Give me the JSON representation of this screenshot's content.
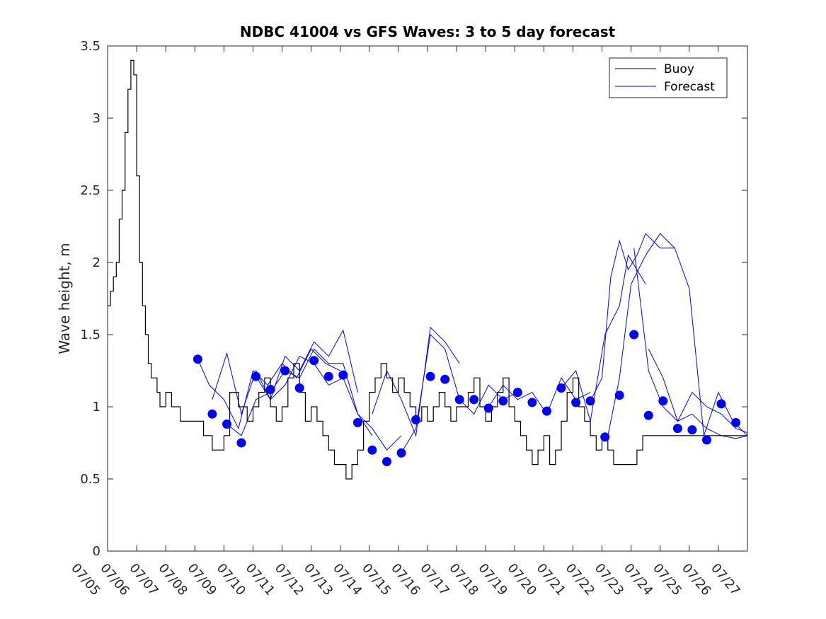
{
  "chart_data": {
    "type": "line",
    "title": "NDBC 41004 vs GFS Waves: 3 to 5 day forecast",
    "xlabel": "",
    "ylabel": "Wave height, m",
    "xlim": [
      0,
      22
    ],
    "ylim": [
      0,
      3.5
    ],
    "x_tick_labels": [
      "07/05",
      "07/06",
      "07/07",
      "07/08",
      "07/09",
      "07/10",
      "07/11",
      "07/12",
      "07/13",
      "07/14",
      "07/15",
      "07/16",
      "07/17",
      "07/18",
      "07/19",
      "07/20",
      "07/21",
      "07/22",
      "07/23",
      "07/24",
      "07/25",
      "07/26",
      "07/27"
    ],
    "y_tick_labels": [
      "0",
      "0.5",
      "1",
      "1.5",
      "2",
      "2.5",
      "3",
      "3.5"
    ],
    "y_ticks": [
      0,
      0.5,
      1,
      1.5,
      2,
      2.5,
      3,
      3.5
    ],
    "legend": {
      "position": "top-right",
      "entries": [
        "Buoy",
        "Forecast"
      ]
    },
    "colors": {
      "buoy": "#000000",
      "forecast": "#0000ff"
    },
    "series": [
      {
        "name": "Buoy",
        "x": [
          0,
          0.1,
          0.2,
          0.3,
          0.4,
          0.5,
          0.6,
          0.7,
          0.8,
          0.9,
          1.0,
          1.1,
          1.2,
          1.3,
          1.4,
          1.5,
          1.6,
          1.7,
          1.8,
          2.0,
          2.2,
          2.5,
          2.8,
          3.0,
          3.3,
          3.6,
          4.0,
          4.2,
          4.5,
          4.8,
          5.0,
          5.2,
          5.4,
          5.6,
          5.8,
          6.0,
          6.2,
          6.4,
          6.6,
          6.8,
          7.0,
          7.2,
          7.4,
          7.6,
          7.8,
          8.0,
          8.2,
          8.4,
          8.6,
          8.8,
          9.0,
          9.2,
          9.4,
          9.6,
          9.8,
          10.0,
          10.2,
          10.4,
          10.6,
          10.8,
          11.0,
          11.2,
          11.4,
          11.6,
          11.8,
          12.0,
          12.2,
          12.4,
          12.6,
          12.8,
          13.0,
          13.2,
          13.4,
          13.6,
          13.8,
          14.0,
          14.2,
          14.4,
          14.6,
          14.8,
          15.0,
          15.2,
          15.4,
          15.6,
          15.8,
          16.0,
          16.2,
          16.4,
          16.6,
          16.8,
          17.0,
          17.2,
          17.4,
          17.6,
          17.8,
          18.0,
          18.2,
          18.4,
          18.6,
          18.8,
          19.0,
          19.2,
          19.4,
          19.6,
          19.8,
          20.0,
          20.2,
          20.4,
          20.6,
          20.8,
          21.0,
          21.2,
          21.4,
          21.6,
          21.8,
          22.0
        ],
        "values": [
          1.7,
          1.8,
          1.9,
          2.0,
          2.3,
          2.5,
          2.9,
          3.2,
          3.4,
          3.3,
          2.6,
          2.0,
          1.7,
          1.5,
          1.3,
          1.2,
          1.2,
          1.1,
          1.0,
          1.1,
          1.0,
          0.9,
          0.9,
          0.9,
          0.8,
          0.7,
          0.8,
          1.1,
          1.0,
          0.9,
          1.0,
          1.1,
          1.2,
          1.0,
          0.9,
          1.0,
          1.2,
          1.3,
          1.1,
          0.9,
          1.0,
          0.9,
          0.8,
          0.7,
          0.6,
          0.6,
          0.5,
          0.6,
          0.7,
          0.9,
          1.1,
          1.2,
          1.3,
          1.2,
          1.1,
          1.2,
          1.1,
          1.0,
          0.9,
          1.0,
          0.9,
          1.0,
          1.1,
          1.0,
          0.9,
          1.0,
          1.0,
          1.1,
          1.2,
          1.0,
          0.9,
          1.0,
          1.1,
          1.2,
          1.0,
          0.9,
          0.8,
          0.7,
          0.6,
          0.7,
          0.8,
          0.6,
          0.7,
          0.9,
          1.1,
          1.2,
          1.0,
          0.9,
          0.8,
          0.7,
          0.8,
          0.7,
          0.6,
          0.6,
          0.6,
          0.6,
          0.7,
          0.8,
          0.8,
          0.8,
          0.8,
          0.8,
          0.8,
          0.8,
          0.8,
          0.8,
          0.8,
          0.8,
          0.8,
          0.8,
          0.8,
          0.8,
          0.8,
          0.8,
          0.8,
          0.8
        ]
      },
      {
        "name": "Forecast",
        "x": [
          3.1,
          3.6,
          4.1,
          4.6,
          5.1,
          5.6,
          6.1,
          6.6,
          7.1,
          7.6,
          8.1,
          8.6,
          9.1,
          9.6,
          10.1,
          10.6,
          11.1,
          11.6,
          12.1,
          12.6,
          13.1,
          13.6,
          14.1,
          14.6,
          15.1,
          15.6,
          16.1,
          16.6,
          17.1,
          17.6,
          18.1,
          18.6,
          19.1,
          19.6,
          20.1,
          20.6,
          21.1,
          21.6
        ],
        "values": [
          1.33,
          0.95,
          0.88,
          0.75,
          1.21,
          1.12,
          1.25,
          1.13,
          1.32,
          1.21,
          1.22,
          0.89,
          0.7,
          0.62,
          0.68,
          0.91,
          1.21,
          1.19,
          1.05,
          1.05,
          0.99,
          1.04,
          1.1,
          1.03,
          0.97,
          1.13,
          1.03,
          1.04,
          0.79,
          1.08,
          1.5,
          0.94,
          1.04,
          0.85,
          0.84,
          0.77,
          1.02,
          0.89
        ]
      }
    ],
    "forecast_runs": [
      {
        "x": [
          3.1,
          3.5,
          4.0,
          4.5,
          5.0,
          5.5,
          6.0,
          6.5,
          7.0,
          7.5,
          8.0
        ],
        "values": [
          1.33,
          1.15,
          1.05,
          0.85,
          1.25,
          1.15,
          1.3,
          1.2,
          1.4,
          1.3,
          1.25
        ]
      },
      {
        "x": [
          3.6,
          4.1,
          4.6,
          5.1,
          5.6,
          6.1,
          6.6,
          7.1,
          7.6,
          8.1,
          8.6
        ],
        "values": [
          1.05,
          1.37,
          0.95,
          1.25,
          1.05,
          1.35,
          1.25,
          1.45,
          1.35,
          1.53,
          1.1
        ]
      },
      {
        "x": [
          4.1,
          4.6,
          5.1,
          5.6,
          6.1,
          6.6,
          7.1,
          7.6,
          8.1,
          8.6,
          9.1
        ],
        "values": [
          0.88,
          0.8,
          1.05,
          1.1,
          1.25,
          1.2,
          1.4,
          1.3,
          1.3,
          0.95,
          0.8
        ]
      },
      {
        "x": [
          5.1,
          5.6,
          6.1,
          6.6,
          7.1,
          7.6,
          8.1,
          8.6,
          9.1,
          9.6,
          10.1
        ],
        "values": [
          1.21,
          1.05,
          1.15,
          1.35,
          1.3,
          1.15,
          1.2,
          0.95,
          0.85,
          0.7,
          0.8
        ]
      },
      {
        "x": [
          9.1,
          9.6,
          10.1,
          10.6,
          11.1,
          11.6,
          12.1
        ],
        "values": [
          0.95,
          1.25,
          1.05,
          0.8,
          1.55,
          1.45,
          1.3
        ]
      },
      {
        "x": [
          10.1,
          10.6,
          11.1,
          11.6,
          12.1,
          12.6,
          13.1,
          13.6,
          14.1
        ],
        "values": [
          0.68,
          0.85,
          1.5,
          1.4,
          1.05,
          0.95,
          1.15,
          1.05,
          1.1
        ]
      },
      {
        "x": [
          13.1,
          13.6,
          14.1,
          14.6,
          15.1,
          15.6,
          16.1,
          16.6
        ],
        "values": [
          1.0,
          1.15,
          1.05,
          1.1,
          0.95,
          1.2,
          1.05,
          1.1
        ]
      },
      {
        "x": [
          15.6,
          16.1,
          16.6,
          17.1,
          17.6,
          17.9,
          18.2,
          18.5
        ],
        "values": [
          1.13,
          1.25,
          0.9,
          1.5,
          1.7,
          2.05,
          1.95,
          1.85
        ]
      },
      {
        "x": [
          16.6,
          17.0,
          17.3,
          17.6,
          17.9,
          18.2,
          18.5,
          19.0,
          19.5
        ],
        "values": [
          1.04,
          1.2,
          1.9,
          2.15,
          1.95,
          2.05,
          2.2,
          2.1,
          2.1
        ]
      },
      {
        "x": [
          17.2,
          17.6,
          18.0,
          18.5,
          19.0,
          19.5,
          20.0,
          20.5,
          21.0,
          21.5,
          22.0
        ],
        "values": [
          0.8,
          1.2,
          1.85,
          2.05,
          2.2,
          2.1,
          1.82,
          0.8,
          1.1,
          0.9,
          0.8
        ]
      },
      {
        "x": [
          18.1,
          18.6,
          19.1,
          19.6,
          20.1,
          20.6,
          21.1,
          21.6,
          22.0
        ],
        "values": [
          2.1,
          1.25,
          1.0,
          0.9,
          1.1,
          1.0,
          0.95,
          0.85,
          0.82
        ]
      },
      {
        "x": [
          18.6,
          19.1,
          19.6,
          20.1,
          20.6,
          21.1,
          21.6,
          22.0
        ],
        "values": [
          1.4,
          1.2,
          0.9,
          0.95,
          0.85,
          0.8,
          0.78,
          0.8
        ]
      }
    ]
  }
}
